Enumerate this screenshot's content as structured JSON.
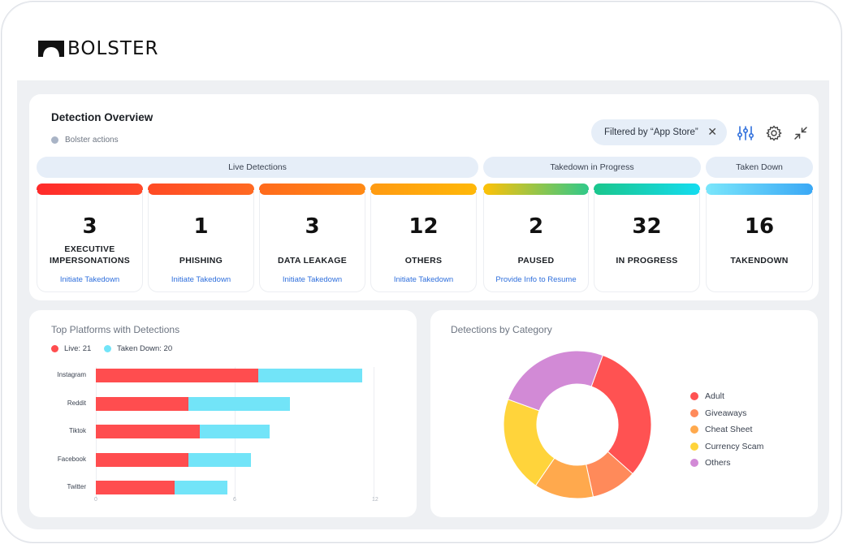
{
  "brand": {
    "name": "BOLSTER"
  },
  "overview": {
    "title": "Detection Overview",
    "legend": "Bolster actions",
    "filter_chip": "Filtered by “App Store”",
    "groups": [
      "Live Detections",
      "Takedown in Progress",
      "Taken Down"
    ],
    "tiles": [
      {
        "value": "3",
        "label": "EXECUTIVE IMPERSONATIONS",
        "action": "Initiate Takedown"
      },
      {
        "value": "1",
        "label": "PHISHING",
        "action": "Initiate Takedown"
      },
      {
        "value": "3",
        "label": "DATA LEAKAGE",
        "action": "Initiate Takedown"
      },
      {
        "value": "12",
        "label": "OTHERS",
        "action": "Initiate Takedown"
      },
      {
        "value": "2",
        "label": "PAUSED",
        "action": "Provide Info to Resume"
      },
      {
        "value": "32",
        "label": "IN PROGRESS",
        "action": ""
      },
      {
        "value": "16",
        "label": "TAKENDOWN",
        "action": ""
      }
    ],
    "icons": [
      "sliders-icon",
      "gear-icon",
      "collapse-icon",
      "close-icon"
    ]
  },
  "platforms": {
    "title": "Top Platforms with Detections",
    "legend_live": "Live: 21",
    "legend_taken": "Taken Down: 20",
    "colors": {
      "live": "#ff4d4f",
      "taken": "#72e4f8"
    },
    "chart_data": {
      "type": "bar",
      "orientation": "horizontal",
      "stacked": true,
      "categories": [
        "Instagram",
        "Reddit",
        "Tiktok",
        "Facebook",
        "Twitter"
      ],
      "series": [
        {
          "name": "Live: 21",
          "values": [
            7,
            4,
            4.5,
            4,
            3.4
          ]
        },
        {
          "name": "Taken Down: 20",
          "values": [
            4.5,
            4.4,
            3,
            2.7,
            2.3
          ]
        }
      ],
      "xlim": [
        0,
        12
      ],
      "xticks": [
        "0",
        "6",
        "12"
      ]
    }
  },
  "category": {
    "title": "Detections by Category",
    "chart_data": {
      "type": "pie",
      "donut": true,
      "labels": [
        "Adult",
        "Giveaways",
        "Cheat Sheet",
        "Currency Scam",
        "Others"
      ],
      "values": [
        31,
        10,
        13,
        21,
        25
      ],
      "colors": [
        "#ff5252",
        "#ff8a5a",
        "#ffa94d",
        "#ffd43b",
        "#d28ad6"
      ]
    }
  }
}
